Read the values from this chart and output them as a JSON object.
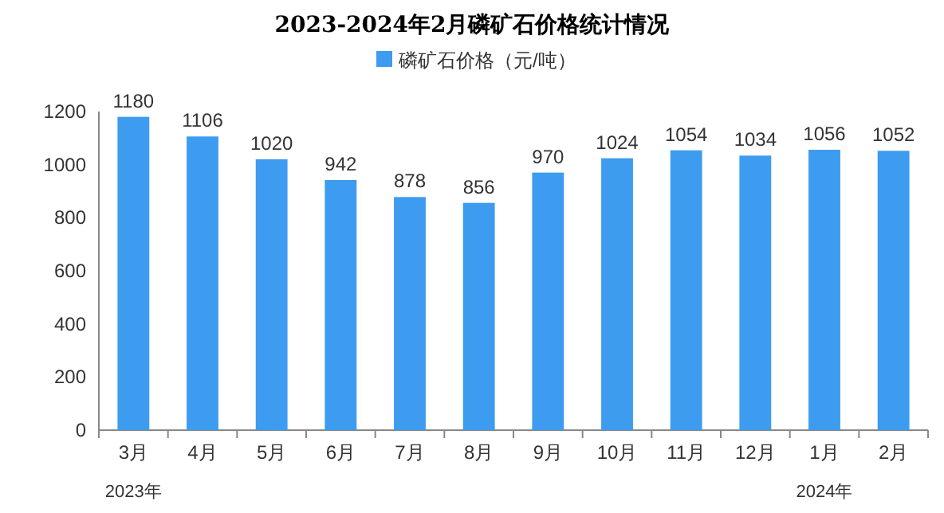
{
  "chart_data": {
    "type": "bar",
    "title": "2023-2024年2月磷矿石价格统计情况",
    "categories": [
      "3月",
      "4月",
      "5月",
      "6月",
      "7月",
      "8月",
      "9月",
      "10月",
      "11月",
      "12月",
      "1月",
      "2月"
    ],
    "series": [
      {
        "name": "磷矿石价格（元/吨）",
        "color": "#3d9cf0",
        "values": [
          1180,
          1106,
          1020,
          942,
          878,
          856,
          970,
          1024,
          1054,
          1034,
          1056,
          1052
        ]
      }
    ],
    "ylim": [
      0,
      1200
    ],
    "yticks": [
      0,
      200,
      400,
      600,
      800,
      1000,
      1200
    ],
    "data_labels": true,
    "legend": "top",
    "grid": false,
    "annotations": [
      "2023年",
      "2024年"
    ]
  }
}
